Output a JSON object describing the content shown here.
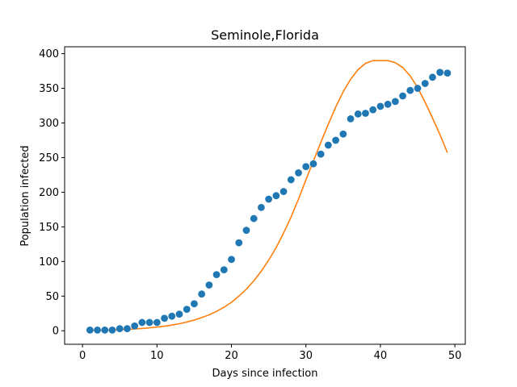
{
  "chart_data": {
    "type": "scatter",
    "title": "Seminole,Florida",
    "xlabel": "Days since infection",
    "ylabel": "Population infected",
    "xlim": [
      -2.4,
      51.4
    ],
    "ylim": [
      -19.5,
      410
    ],
    "xticks": [
      0,
      10,
      20,
      30,
      40,
      50
    ],
    "yticks": [
      0,
      50,
      100,
      150,
      200,
      250,
      300,
      350,
      400
    ],
    "grid": false,
    "series": [
      {
        "kind": "scatter",
        "color": "#1f77b4",
        "points": [
          [
            1,
            1
          ],
          [
            2,
            1
          ],
          [
            3,
            1
          ],
          [
            4,
            1
          ],
          [
            5,
            3
          ],
          [
            6,
            3
          ],
          [
            7,
            7
          ],
          [
            8,
            12
          ],
          [
            9,
            12
          ],
          [
            10,
            12
          ],
          [
            11,
            18
          ],
          [
            12,
            21
          ],
          [
            13,
            24
          ],
          [
            14,
            31
          ],
          [
            15,
            39
          ],
          [
            16,
            53
          ],
          [
            17,
            66
          ],
          [
            18,
            81
          ],
          [
            19,
            88
          ],
          [
            20,
            103
          ],
          [
            21,
            127
          ],
          [
            22,
            145
          ],
          [
            23,
            162
          ],
          [
            24,
            178
          ],
          [
            25,
            190
          ],
          [
            26,
            195
          ],
          [
            27,
            201
          ],
          [
            28,
            218
          ],
          [
            29,
            228
          ],
          [
            30,
            237
          ],
          [
            31,
            241
          ],
          [
            32,
            255
          ],
          [
            33,
            268
          ],
          [
            34,
            275
          ],
          [
            35,
            284
          ],
          [
            36,
            306
          ],
          [
            37,
            313
          ],
          [
            38,
            314
          ],
          [
            39,
            319
          ],
          [
            40,
            324
          ],
          [
            41,
            327
          ],
          [
            42,
            331
          ],
          [
            43,
            339
          ],
          [
            44,
            347
          ],
          [
            45,
            350
          ],
          [
            46,
            357
          ],
          [
            47,
            366
          ],
          [
            48,
            373
          ],
          [
            49,
            372
          ]
        ]
      },
      {
        "kind": "line",
        "color": "#ff7f0e",
        "points": [
          [
            1,
            0.5
          ],
          [
            2,
            0.7
          ],
          [
            3,
            0.9
          ],
          [
            4,
            1.2
          ],
          [
            5,
            1.6
          ],
          [
            6,
            2.0
          ],
          [
            7,
            2.6
          ],
          [
            8,
            3.3
          ],
          [
            9,
            4.2
          ],
          [
            10,
            5.3
          ],
          [
            11,
            6.6
          ],
          [
            12,
            8.2
          ],
          [
            13,
            10.2
          ],
          [
            14,
            12.6
          ],
          [
            15,
            15.5
          ],
          [
            16,
            19
          ],
          [
            17,
            23
          ],
          [
            18,
            28
          ],
          [
            19,
            34
          ],
          [
            20,
            41
          ],
          [
            21,
            50
          ],
          [
            22,
            60
          ],
          [
            23,
            72
          ],
          [
            24,
            86
          ],
          [
            25,
            102
          ],
          [
            26,
            120
          ],
          [
            27,
            141
          ],
          [
            28,
            164
          ],
          [
            29,
            190
          ],
          [
            30,
            218
          ],
          [
            31,
            245
          ],
          [
            32,
            272
          ],
          [
            33,
            298
          ],
          [
            34,
            323
          ],
          [
            35,
            345
          ],
          [
            36,
            363
          ],
          [
            37,
            377
          ],
          [
            38,
            386
          ],
          [
            39,
            390
          ],
          [
            40,
            390
          ],
          [
            41,
            390
          ],
          [
            42,
            387
          ],
          [
            43,
            380
          ],
          [
            44,
            368
          ],
          [
            45,
            351
          ],
          [
            46,
            330
          ],
          [
            47,
            307
          ],
          [
            48,
            283
          ],
          [
            49,
            257
          ]
        ]
      }
    ]
  }
}
